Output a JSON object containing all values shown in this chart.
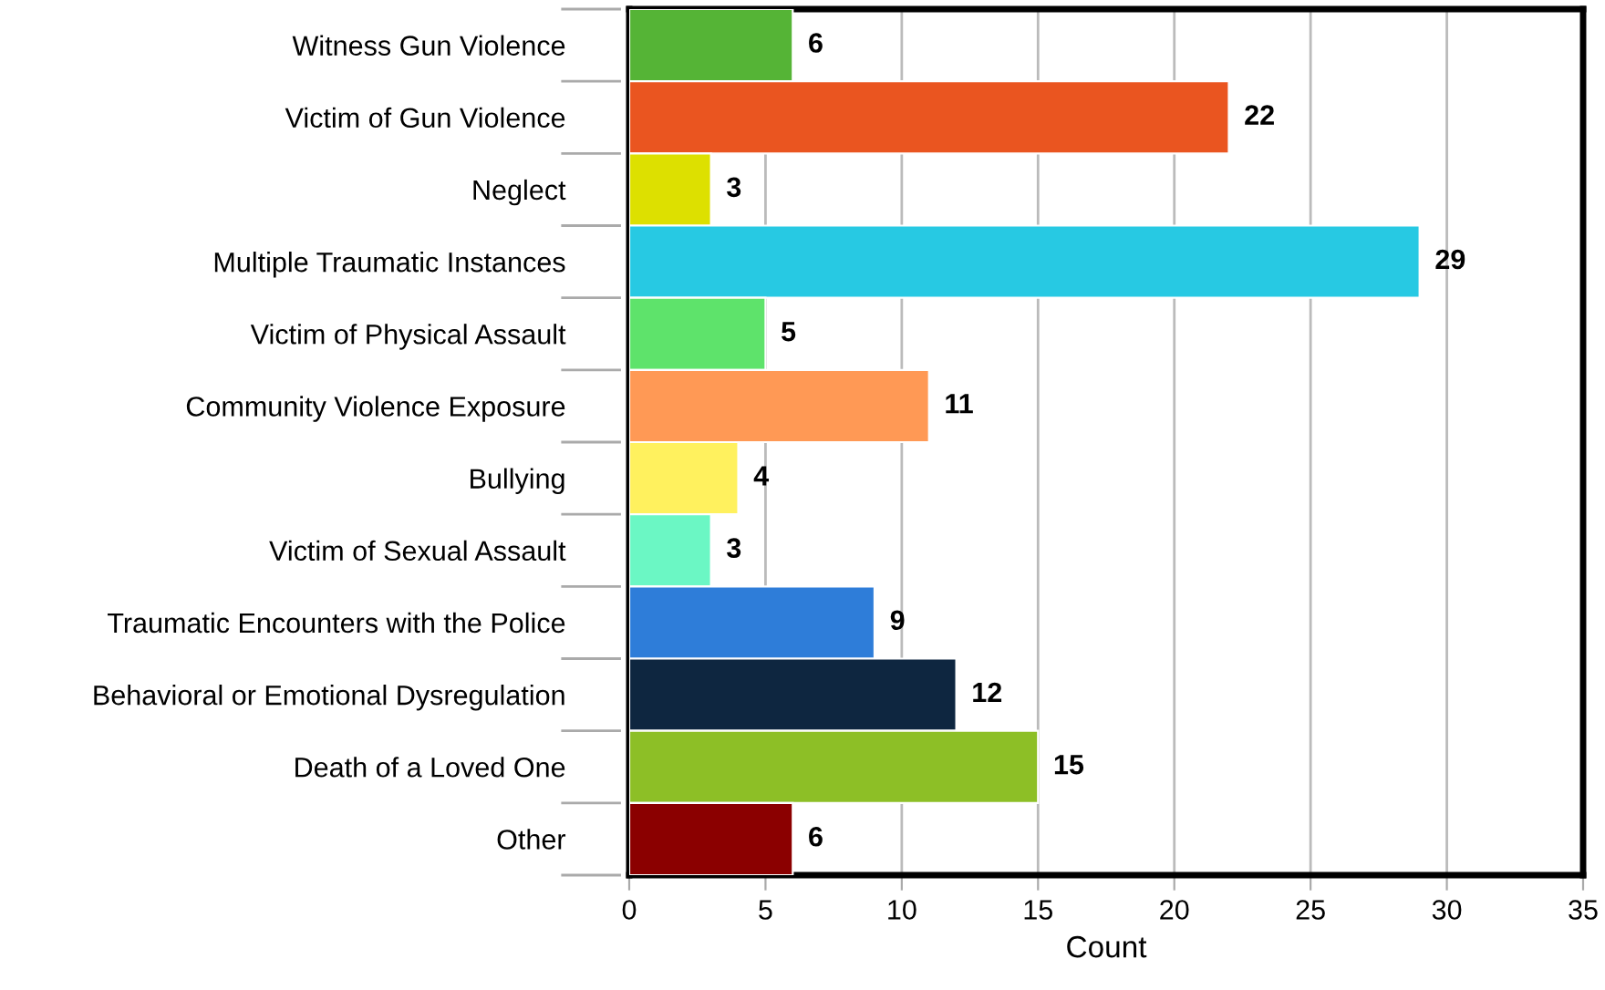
{
  "chart_data": {
    "type": "bar",
    "orientation": "horizontal",
    "xlabel": "Count",
    "categories": [
      "Witness Gun Violence",
      "Victim of Gun Violence",
      "Neglect",
      "Multiple Traumatic Instances",
      "Victim of Physical Assault",
      "Community Violence Exposure",
      "Bullying",
      "Victim of Sexual Assault",
      "Traumatic Encounters with the Police",
      "Behavioral or Emotional Dysregulation",
      "Death of a Loved One",
      "Other"
    ],
    "values": [
      6,
      22,
      3,
      29,
      5,
      11,
      4,
      3,
      9,
      12,
      15,
      6
    ],
    "colors": [
      "#55b436",
      "#ea5520",
      "#dde000",
      "#27c9e3",
      "#5ee36b",
      "#ff9955",
      "#fff15e",
      "#6bf7c4",
      "#2e7dd9",
      "#0e2640",
      "#8dbf26",
      "#8b0000"
    ],
    "xlim": [
      0,
      35
    ],
    "xticks": [
      0,
      5,
      10,
      15,
      20,
      25,
      30,
      35
    ],
    "grid": "x",
    "data_labels": true,
    "legend": false
  }
}
